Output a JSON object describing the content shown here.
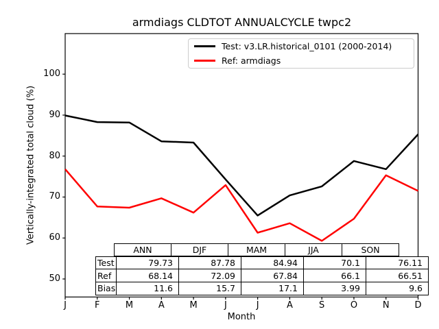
{
  "colors": {
    "test_line": "#000000",
    "ref_line": "#ff0000",
    "legend_border": "#cccccc",
    "axis": "#000000",
    "background": "#ffffff"
  },
  "chart_data": {
    "type": "line",
    "title": "armdiags CLDTOT ANNUALCYCLE twpc2",
    "xlabel": "Month",
    "ylabel": "Vertically-integrated total cloud (%)",
    "x_tick_labels": [
      "J",
      "F",
      "M",
      "A",
      "M",
      "J",
      "J",
      "A",
      "S",
      "O",
      "N",
      "D"
    ],
    "y_ticks": [
      50,
      60,
      70,
      80,
      90,
      100
    ],
    "ylim": [
      45.6,
      109.9
    ],
    "grid": false,
    "legend_position": "upper right inside",
    "series": [
      {
        "name": "Test: v3.LR.historical_0101 (2000-2014)",
        "color": "#000000",
        "values": [
          89.9,
          88.3,
          88.2,
          83.6,
          83.3,
          74.3,
          65.5,
          70.4,
          72.6,
          78.8,
          76.8,
          85.3
        ]
      },
      {
        "name": "Ref: armdiags",
        "color": "#ff0000",
        "values": [
          76.8,
          67.7,
          67.4,
          69.7,
          66.2,
          72.9,
          61.3,
          63.6,
          59.3,
          64.7,
          75.3,
          71.5
        ]
      }
    ],
    "stats_table": {
      "columns": [
        "ANN",
        "DJF",
        "MAM",
        "JJA",
        "SON"
      ],
      "rows": [
        {
          "label": "Test",
          "values": [
            "79.73",
            "87.78",
            "84.94",
            "70.1",
            "76.11"
          ]
        },
        {
          "label": "Ref",
          "values": [
            "68.14",
            "72.09",
            "67.84",
            "66.1",
            "66.51"
          ]
        },
        {
          "label": "Bias",
          "values": [
            "11.6",
            "15.7",
            "17.1",
            "3.99",
            "9.6"
          ]
        }
      ]
    }
  }
}
